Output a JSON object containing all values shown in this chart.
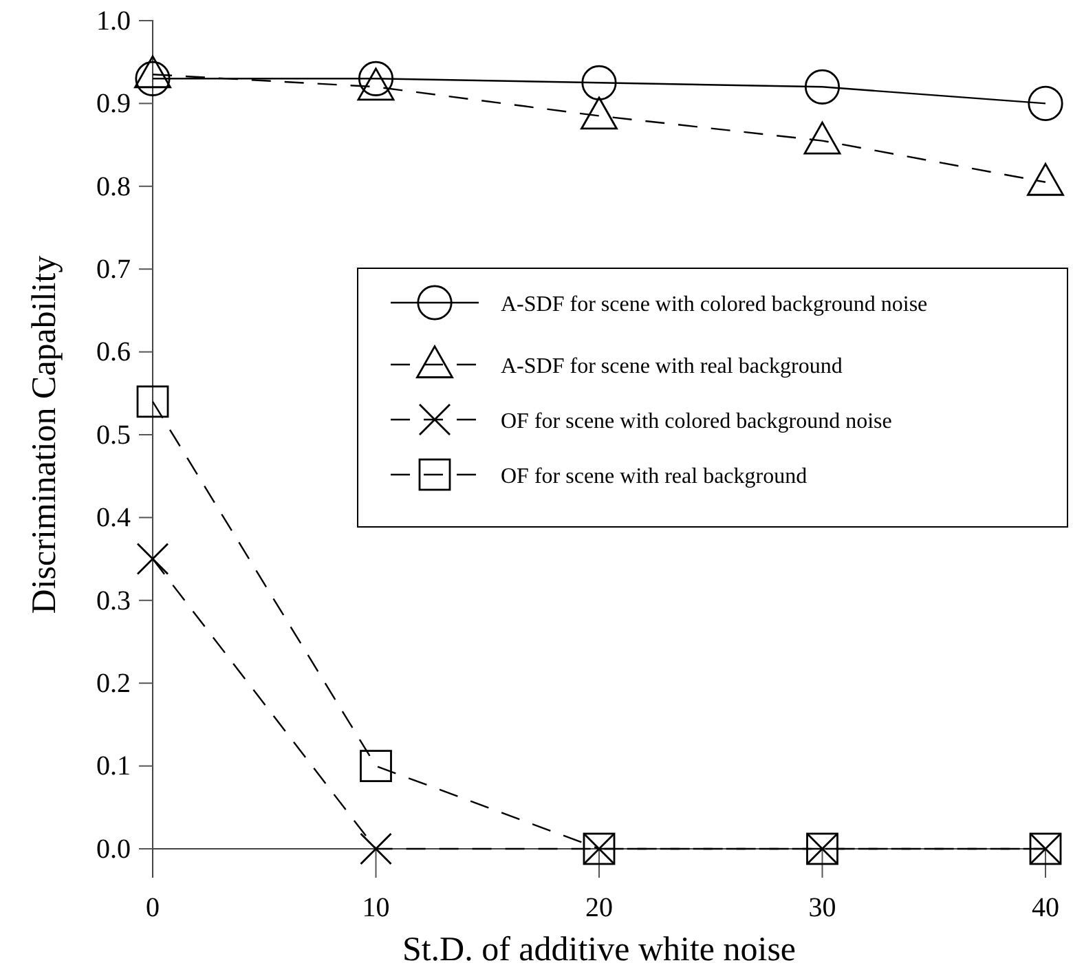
{
  "chart_data": {
    "type": "line",
    "xlabel": "St.D. of additive white noise",
    "ylabel": "Discrimination Capability",
    "x": [
      0,
      10,
      20,
      30,
      40
    ],
    "series": [
      {
        "name": "A-SDF for scene with colored background noise",
        "color": "#000000",
        "values": [
          0.93,
          0.93,
          0.925,
          0.92,
          0.9
        ],
        "marker": "circle",
        "line_style": "solid"
      },
      {
        "name": "A-SDF for scene with real background",
        "color": "#000000",
        "values": [
          0.935,
          0.92,
          0.885,
          0.855,
          0.805
        ],
        "marker": "triangle",
        "line_style": "dashed"
      },
      {
        "name": "OF for scene with colored background noise",
        "color": "#000000",
        "values": [
          0.35,
          0,
          0,
          0,
          0
        ],
        "marker": "cross",
        "line_style": "dashed"
      },
      {
        "name": "OF for scene with real background",
        "color": "#000000",
        "values": [
          0.54,
          0.1,
          0,
          0,
          0
        ],
        "marker": "square",
        "line_style": "dashed"
      }
    ],
    "xlim": [
      0,
      40
    ],
    "xticks": [
      0,
      10,
      20,
      30,
      40
    ],
    "ylim": [
      0,
      1
    ],
    "yticks": [
      {
        "value": 0,
        "label": "0.0"
      },
      {
        "value": 0.1,
        "label": "0.1"
      },
      {
        "value": 0.2,
        "label": "0.2"
      },
      {
        "value": 0.3,
        "label": "0.3"
      },
      {
        "value": 0.4,
        "label": "0.4"
      },
      {
        "value": 0.5,
        "label": "0.5"
      },
      {
        "value": 0.6,
        "label": "0.6"
      },
      {
        "value": 0.7,
        "label": "0.7"
      },
      {
        "value": 0.8,
        "label": "0.8"
      },
      {
        "value": 0.9,
        "label": "0.9"
      },
      {
        "value": 1,
        "label": "1.0"
      }
    ],
    "legend": "right",
    "grid": false
  }
}
